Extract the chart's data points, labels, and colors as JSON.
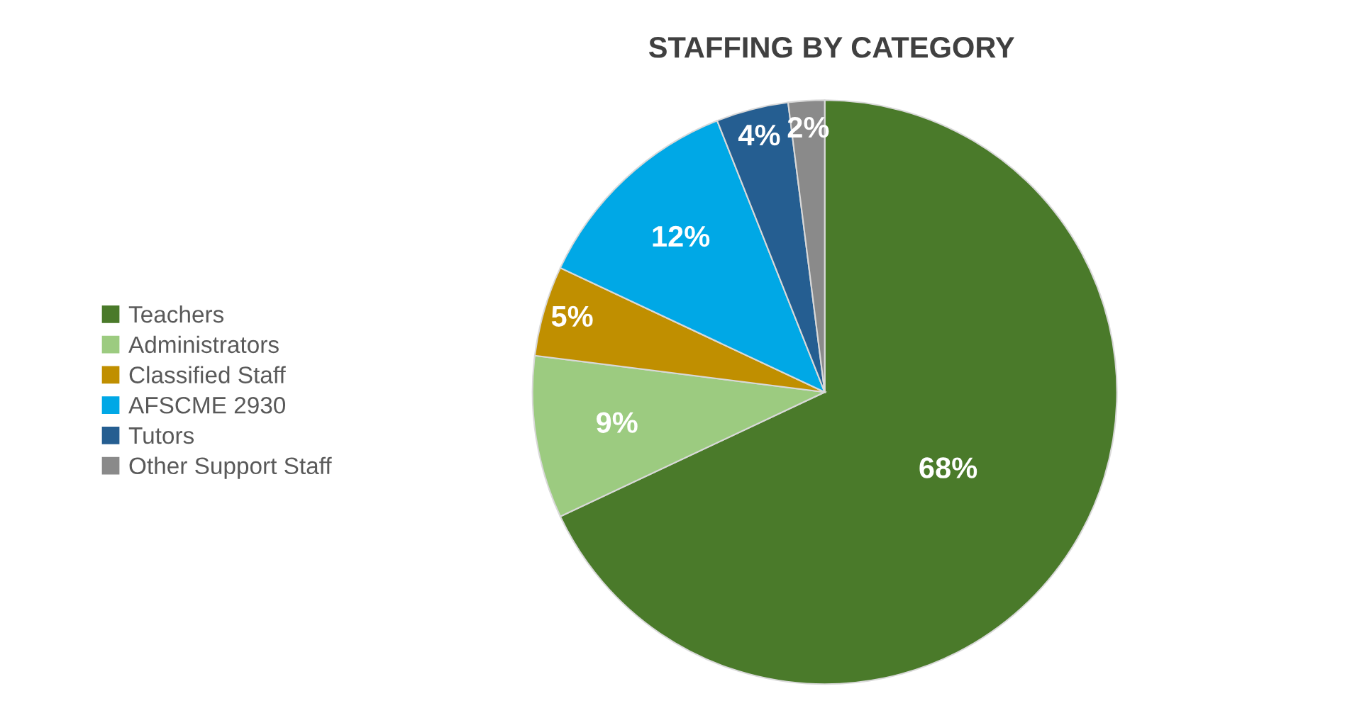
{
  "chart_data": {
    "type": "pie",
    "title": "STAFFING BY CATEGORY",
    "categories": [
      "Teachers",
      "Administrators",
      "Classified Staff",
      "AFSCME 2930",
      "Tutors",
      "Other Support Staff"
    ],
    "values": [
      68,
      9,
      5,
      12,
      4,
      2
    ],
    "colors": [
      "#4a7a2a",
      "#9ccb80",
      "#c08f00",
      "#00a8e6",
      "#255e91",
      "#8a8a8a"
    ],
    "value_labels": [
      "68%",
      "9%",
      "5%",
      "12%",
      "4%",
      "2%"
    ],
    "legend": "left"
  }
}
